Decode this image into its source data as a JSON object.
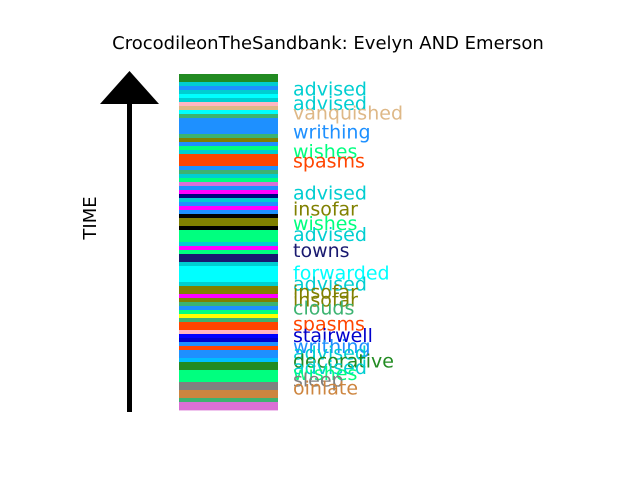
{
  "chart_data": {
    "type": "bar",
    "title": "CrocodileonTheSandbank: Evelyn AND Emerson",
    "ylabel": "TIME",
    "stack": [
      {
        "color": "#228B22"
      },
      {
        "color": "#228B22"
      },
      {
        "color": "#00CED1"
      },
      {
        "color": "#1E90FF"
      },
      {
        "color": "#00CED1"
      },
      {
        "color": "#00FFFF"
      },
      {
        "color": "#00CED1"
      },
      {
        "color": "#FFB6C1"
      },
      {
        "color": "#DEB887"
      },
      {
        "color": "#00FFFF"
      },
      {
        "color": "#3CB371"
      },
      {
        "color": "#1E90FF"
      },
      {
        "color": "#1E90FF"
      },
      {
        "color": "#1E90FF"
      },
      {
        "color": "#1E90FF"
      },
      {
        "color": "#3CB371"
      },
      {
        "color": "#808000"
      },
      {
        "color": "#1E90FF"
      },
      {
        "color": "#00FF7F"
      },
      {
        "color": "#00CED1"
      },
      {
        "color": "#FF4500"
      },
      {
        "color": "#FF4500"
      },
      {
        "color": "#FF4500"
      },
      {
        "color": "#1E90FF"
      },
      {
        "color": "#3CB371"
      },
      {
        "color": "#00CED1"
      },
      {
        "color": "#00FF7F"
      },
      {
        "color": "#DA70D6"
      },
      {
        "color": "#1E90FF"
      },
      {
        "color": "#FF00FF"
      },
      {
        "color": "#000080"
      },
      {
        "color": "#00CED1"
      },
      {
        "color": "#1E90FF"
      },
      {
        "color": "#FF00FF"
      },
      {
        "color": "#1E90FF"
      },
      {
        "color": "#000000"
      },
      {
        "color": "#808000"
      },
      {
        "color": "#808000"
      },
      {
        "color": "#000000"
      },
      {
        "color": "#00FF7F"
      },
      {
        "color": "#00FF7F"
      },
      {
        "color": "#00FF7F"
      },
      {
        "color": "#00CED1"
      },
      {
        "color": "#FF00FF"
      },
      {
        "color": "#00FF7F"
      },
      {
        "color": "#191970"
      },
      {
        "color": "#191970"
      },
      {
        "color": "#00CED1"
      },
      {
        "color": "#00FFFF"
      },
      {
        "color": "#00FFFF"
      },
      {
        "color": "#00FFFF"
      },
      {
        "color": "#00FFFF"
      },
      {
        "color": "#00CED1"
      },
      {
        "color": "#808000"
      },
      {
        "color": "#808000"
      },
      {
        "color": "#FF00FF"
      },
      {
        "color": "#808000"
      },
      {
        "color": "#3CB371"
      },
      {
        "color": "#1E90FF"
      },
      {
        "color": "#00FF7F"
      },
      {
        "color": "#FFFF00"
      },
      {
        "color": "#3CB371"
      },
      {
        "color": "#FF4500"
      },
      {
        "color": "#FF4500"
      },
      {
        "color": "#FFB6C1"
      },
      {
        "color": "#0000FF"
      },
      {
        "color": "#0000CD"
      },
      {
        "color": "#1E90FF"
      },
      {
        "color": "#FF4500"
      },
      {
        "color": "#1E90FF"
      },
      {
        "color": "#1E90FF"
      },
      {
        "color": "#00BFFF"
      },
      {
        "color": "#228B22"
      },
      {
        "color": "#228B22"
      },
      {
        "color": "#00FF7F"
      },
      {
        "color": "#00FF7F"
      },
      {
        "color": "#00FF7F"
      },
      {
        "color": "#808080"
      },
      {
        "color": "#808080"
      },
      {
        "color": "#CD853F"
      },
      {
        "color": "#CD853F"
      },
      {
        "color": "#3CB371"
      },
      {
        "color": "#DA70D6"
      },
      {
        "color": "#DA70D6"
      }
    ],
    "labels": [
      {
        "text": "advised",
        "color": "#00CED1",
        "position": 0.02
      },
      {
        "text": "advised",
        "color": "#00CED1",
        "position": 0.065
      },
      {
        "text": "vanquished",
        "color": "#DEB887",
        "position": 0.095
      },
      {
        "text": "writhing",
        "color": "#1E90FF",
        "position": 0.155
      },
      {
        "text": "wishes",
        "color": "#00FF7F",
        "position": 0.215
      },
      {
        "text": "spasms",
        "color": "#FF4500",
        "position": 0.245
      },
      {
        "text": "advised",
        "color": "#00CED1",
        "position": 0.345
      },
      {
        "text": "insofar",
        "color": "#808000",
        "position": 0.395
      },
      {
        "text": "wishes",
        "color": "#00FF7F",
        "position": 0.44
      },
      {
        "text": "advised",
        "color": "#00CED1",
        "position": 0.475
      },
      {
        "text": "towns",
        "color": "#191970",
        "position": 0.525
      },
      {
        "text": "forwarded",
        "color": "#00FFFF",
        "position": 0.595
      },
      {
        "text": "advised",
        "color": "#00CED1",
        "position": 0.63
      },
      {
        "text": "insofar",
        "color": "#808000",
        "position": 0.655
      },
      {
        "text": "insofar",
        "color": "#808000",
        "position": 0.68
      },
      {
        "text": "clouds",
        "color": "#3CB371",
        "position": 0.705
      },
      {
        "text": "spasms",
        "color": "#FF4500",
        "position": 0.755
      },
      {
        "text": "stairwell",
        "color": "#0000CD",
        "position": 0.79
      },
      {
        "text": "writhing",
        "color": "#1E90FF",
        "position": 0.825
      },
      {
        "text": "advised",
        "color": "#00CED1",
        "position": 0.845
      },
      {
        "text": "decorative",
        "color": "#228B22",
        "position": 0.87
      },
      {
        "text": "advised",
        "color": "#00CED1",
        "position": 0.89
      },
      {
        "text": "wishes",
        "color": "#00FF7F",
        "position": 0.91
      },
      {
        "text": "sleep",
        "color": "#808080",
        "position": 0.93
      },
      {
        "text": "oinlate",
        "color": "#CD853F",
        "position": 0.955
      }
    ]
  }
}
